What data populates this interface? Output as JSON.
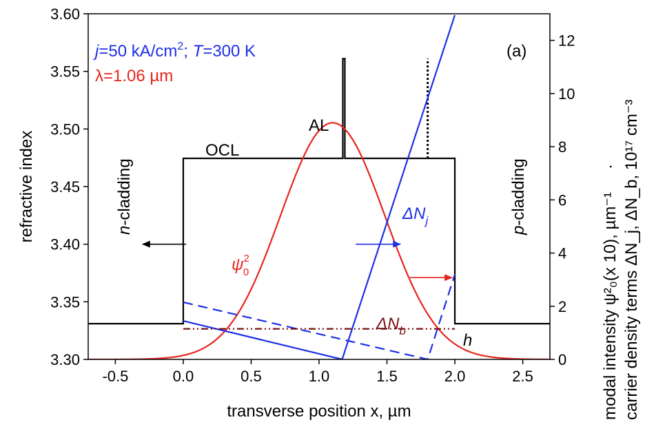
{
  "chart_data": {
    "type": "line",
    "panel_label": "(a)",
    "xlabel_text": "transverse position x, ",
    "xlabel_unit": "µm",
    "ylabel_left": "refractive index",
    "ylabel_right_red": "modal intensity ψ²₀(x 10), µm⁻¹",
    "ylabel_right_dot": " · ",
    "ylabel_right_blue": "carrier density terms ΔN_j, ΔN_b, 10¹⁷ cm⁻³",
    "xlim": [
      -0.7,
      2.7
    ],
    "ylim_left": [
      3.3,
      3.6
    ],
    "ylim_right": [
      0,
      13
    ],
    "x_ticks": [
      "-0.5",
      "0.0",
      "0.5",
      "1.0",
      "1.5",
      "2.0",
      "2.5"
    ],
    "x_tick_values": [
      -0.5,
      0.0,
      0.5,
      1.0,
      1.5,
      2.0,
      2.5
    ],
    "y_left_ticks": [
      "3.30",
      "3.35",
      "3.40",
      "3.45",
      "3.50",
      "3.55",
      "3.60"
    ],
    "y_left_tick_values": [
      3.3,
      3.35,
      3.4,
      3.45,
      3.5,
      3.55,
      3.6
    ],
    "y_right_ticks": [
      "0",
      "2",
      "4",
      "6",
      "8",
      "10",
      "12"
    ],
    "y_right_tick_values": [
      0,
      2,
      4,
      6,
      8,
      10,
      12
    ],
    "annotations": {
      "condition_line1": "j=50 kA/cm²; T=300 K",
      "condition_j": "j",
      "condition_rest1": "=50 kA/cm",
      "condition_sup": "2",
      "condition_rest2": "; ",
      "condition_T": "T",
      "condition_rest3": "=300 K",
      "wavelength": "λ=1.06 µm",
      "active_layer": "AL",
      "ocl": "OCL",
      "n_cladding_italic": "n",
      "n_cladding_rest": "-cladding",
      "p_cladding_italic": "p",
      "p_cladding_rest": "-cladding",
      "psi": "ψ",
      "psi_sup": "2",
      "psi_sub": "0",
      "delta_nj": "ΔN",
      "delta_nj_sub": "j",
      "delta_nb": "ΔN",
      "delta_nb_sub": "b",
      "h": "h"
    },
    "series": [
      {
        "axis": "left",
        "color": "#000000",
        "style": "solid",
        "points": [
          [
            -0.7,
            3.331
          ],
          [
            0.0,
            3.331
          ],
          [
            0.0,
            3.4745
          ],
          [
            1.175,
            3.4745
          ],
          [
            1.175,
            3.561
          ],
          [
            1.19,
            3.561
          ],
          [
            1.19,
            3.4745
          ],
          [
            2.0,
            3.4745
          ],
          [
            2.0,
            3.331
          ],
          [
            2.7,
            3.331
          ]
        ]
      },
      {
        "axis": "left",
        "color": "#000000",
        "style": "dotted",
        "points": [
          [
            1.8,
            3.4745
          ],
          [
            1.8,
            3.561
          ]
        ]
      },
      {
        "axis": "right",
        "name": "ψ",
        "color": "#e8231c",
        "style": "solid",
        "type": "gaussian",
        "peak_x": 1.1,
        "peak_y": 8.9,
        "sigma": 0.385,
        "x_range": [
          -0.7,
          2.7
        ]
      },
      {
        "axis": "right",
        "name": "ΔN",
        "color": "#1c2ee6",
        "style": "solid",
        "points": [
          [
            0.0,
            1.45
          ],
          [
            1.17,
            0.0
          ],
          [
            2.0,
            12.95
          ]
        ]
      },
      {
        "axis": "right",
        "color": "#1c2ee6",
        "style": "dashed",
        "points": [
          [
            0.0,
            2.15
          ],
          [
            1.8,
            0.0
          ],
          [
            2.0,
            3.2
          ]
        ]
      },
      {
        "axis": "right",
        "color": "#7a1010",
        "style": "dash-dot",
        "points": [
          [
            0.0,
            1.15
          ],
          [
            2.0,
            1.15
          ]
        ]
      }
    ],
    "arrows": [
      {
        "color": "#000000",
        "from": [
          0.02,
          3.4
        ],
        "to": [
          -0.3,
          3.4
        ],
        "axis": "left"
      },
      {
        "color": "#1c2ee6",
        "from": [
          1.27,
          3.4
        ],
        "to": [
          1.6,
          3.4
        ],
        "axis": "left"
      },
      {
        "color": "#e8231c",
        "from": [
          1.67,
          3.371
        ],
        "to": [
          1.98,
          3.371
        ],
        "axis": "left"
      }
    ]
  }
}
